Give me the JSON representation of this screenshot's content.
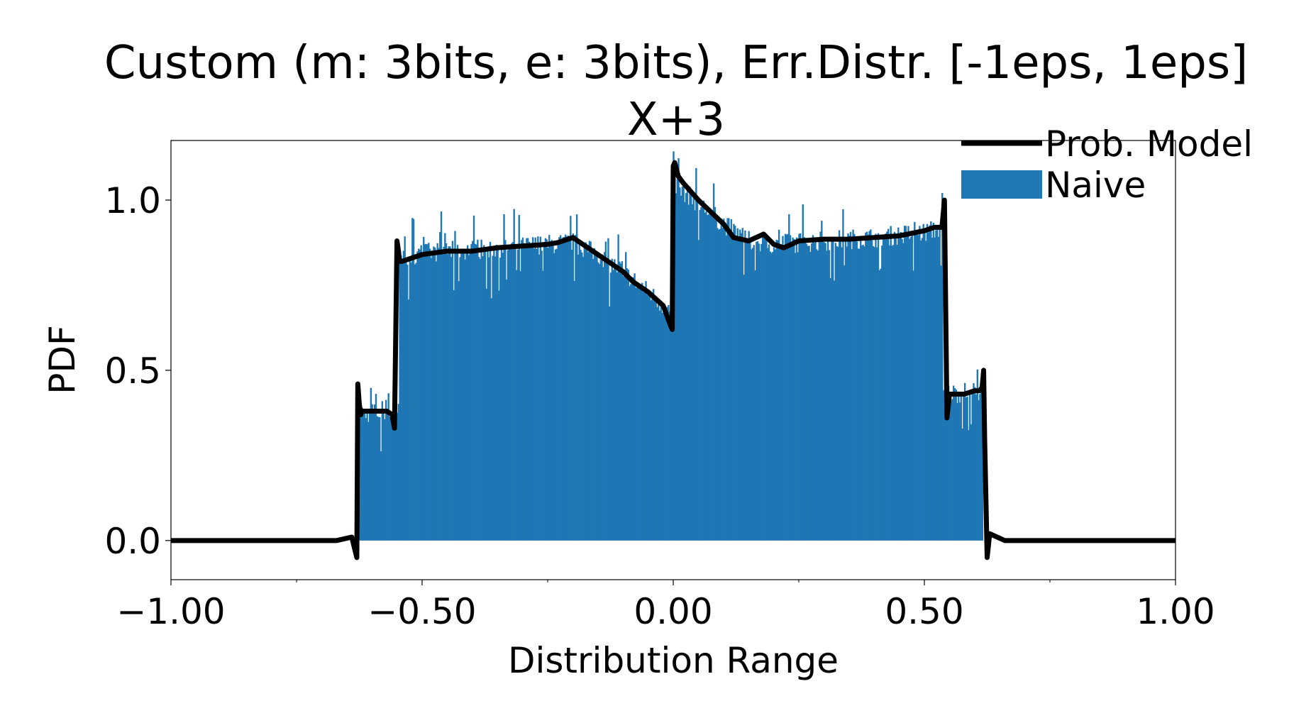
{
  "chart_data": {
    "type": "bar",
    "title": "Custom (m: 3bits, e: 3bits), Err.Distr. [-1eps, 1eps]",
    "subtitle": "X+3",
    "xlabel": "Distribution Range",
    "ylabel": "PDF",
    "xlim": [
      -1.0,
      1.0
    ],
    "ylim": [
      -0.115,
      1.175
    ],
    "xticks": [
      -1.0,
      -0.5,
      0.0,
      0.5,
      1.0
    ],
    "xtick_labels": [
      "−1.00",
      "−0.50",
      "0.00",
      "0.50",
      "1.00"
    ],
    "xminor_ticks": [
      -0.75,
      -0.25,
      0.25,
      0.75
    ],
    "yticks": [
      0.0,
      0.5,
      1.0
    ],
    "ytick_labels": [
      "0.0",
      "0.5",
      "1.0"
    ],
    "grid": false,
    "legend_placement": "top-right",
    "series": [
      {
        "name": "Prob. Model",
        "kind": "line",
        "color": "#000000",
        "x": [
          -1.0,
          -0.75,
          -0.67,
          -0.64,
          -0.63,
          -0.628,
          -0.625,
          -0.622,
          -0.62,
          -0.61,
          -0.59,
          -0.57,
          -0.56,
          -0.555,
          -0.55,
          -0.547,
          -0.545,
          -0.54,
          -0.52,
          -0.5,
          -0.45,
          -0.4,
          -0.35,
          -0.3,
          -0.25,
          -0.23,
          -0.2,
          -0.18,
          -0.15,
          -0.1,
          -0.08,
          -0.05,
          -0.02,
          -0.01,
          -0.005,
          -0.002,
          0.0,
          0.003,
          0.01,
          0.02,
          0.05,
          0.1,
          0.12,
          0.15,
          0.18,
          0.2,
          0.22,
          0.25,
          0.3,
          0.35,
          0.4,
          0.45,
          0.5,
          0.52,
          0.535,
          0.54,
          0.545,
          0.55,
          0.56,
          0.58,
          0.6,
          0.61,
          0.615,
          0.618,
          0.62,
          0.625,
          0.63,
          0.66,
          0.7,
          0.8,
          1.0
        ],
        "y": [
          0.0,
          0.0,
          0.0,
          0.01,
          -0.05,
          0.46,
          0.4,
          0.37,
          0.38,
          0.38,
          0.38,
          0.38,
          0.37,
          0.33,
          0.88,
          0.85,
          0.82,
          0.82,
          0.83,
          0.84,
          0.85,
          0.85,
          0.86,
          0.865,
          0.87,
          0.875,
          0.89,
          0.87,
          0.84,
          0.79,
          0.76,
          0.73,
          0.69,
          0.65,
          0.63,
          0.62,
          1.1,
          1.11,
          1.07,
          1.05,
          1.0,
          0.93,
          0.89,
          0.88,
          0.9,
          0.87,
          0.86,
          0.88,
          0.885,
          0.885,
          0.89,
          0.895,
          0.91,
          0.92,
          0.92,
          1.0,
          0.36,
          0.43,
          0.43,
          0.43,
          0.44,
          0.44,
          0.45,
          0.5,
          0.3,
          -0.05,
          0.02,
          0.0,
          0.0,
          0.0,
          0.0
        ]
      },
      {
        "name": "Naive",
        "kind": "histogram",
        "color": "#1f77b4",
        "x_range": [
          -0.6285,
          0.6165
        ],
        "bin_width": 0.0025,
        "segments": [
          {
            "x": -0.6285,
            "y": 0.375
          },
          {
            "x": -0.547,
            "y": 0.83
          },
          {
            "x": -0.5,
            "y": 0.845
          },
          {
            "x": -0.4,
            "y": 0.855
          },
          {
            "x": -0.3,
            "y": 0.865
          },
          {
            "x": -0.2,
            "y": 0.875
          },
          {
            "x": -0.15,
            "y": 0.84
          },
          {
            "x": -0.1,
            "y": 0.79
          },
          {
            "x": -0.05,
            "y": 0.73
          },
          {
            "x": -0.005,
            "y": 0.67
          },
          {
            "x": 0.0,
            "y": 1.05
          },
          {
            "x": 0.05,
            "y": 0.99
          },
          {
            "x": 0.1,
            "y": 0.93
          },
          {
            "x": 0.15,
            "y": 0.88
          },
          {
            "x": 0.2,
            "y": 0.87
          },
          {
            "x": 0.3,
            "y": 0.88
          },
          {
            "x": 0.4,
            "y": 0.89
          },
          {
            "x": 0.5,
            "y": 0.905
          },
          {
            "x": 0.535,
            "y": 0.92
          },
          {
            "x": 0.5365,
            "y": 0.43
          },
          {
            "x": 0.6165,
            "y": 0.44
          }
        ]
      }
    ]
  }
}
